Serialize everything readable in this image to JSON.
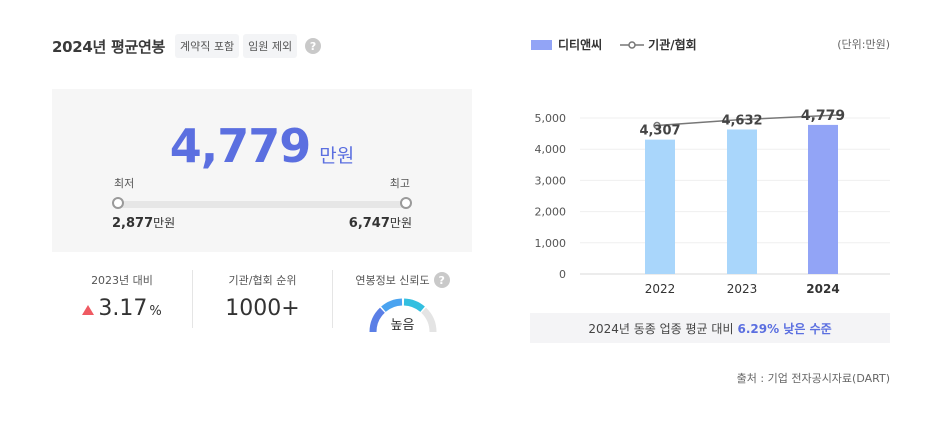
{
  "title": "2024년 평균연봉",
  "chips": [
    "계약직 포함",
    "임원 제외"
  ],
  "help_icon": "?",
  "salary": {
    "value": "4,779",
    "unit": "만원"
  },
  "range": {
    "min_label": "최저",
    "max_label": "최고",
    "min_value": "2,877",
    "max_value": "6,747",
    "unit": "만원"
  },
  "stats": {
    "yoy_label": "2023년 대비",
    "yoy_value": "3.17",
    "yoy_unit": "%",
    "rank_label": "기관/협회 순위",
    "rank_value": "1000+",
    "reliability_label": "연봉정보 신뢰도",
    "reliability_value": "높음"
  },
  "legend": {
    "company": "디티앤씨",
    "industry": "기관/협회"
  },
  "unit_note": "(단위:만원)",
  "chart_data": {
    "type": "bar",
    "categories": [
      "2022",
      "2023",
      "2024"
    ],
    "series": [
      {
        "name": "디티앤씨",
        "values": [
          4307,
          4632,
          4779
        ],
        "colors": [
          "#a9d6fb",
          "#a9d6fb",
          "#92a4f6"
        ]
      },
      {
        "name": "기관/협회",
        "type": "line",
        "values": [
          4760,
          4950,
          5100
        ],
        "color": "#777777"
      }
    ],
    "value_labels": [
      "4,307",
      "4,632",
      "4,779"
    ],
    "y_ticks": [
      "0",
      "1,000",
      "2,000",
      "3,000",
      "4,000",
      "5,000"
    ],
    "ylim": [
      0,
      5000
    ],
    "grid": true
  },
  "compare": {
    "prefix": "2024년 동종 업종 평균 대비",
    "highlight": "6.29% 낮은 수준"
  },
  "source": "출처 : 기업 전자공시자료(DART)",
  "colors": {
    "accent": "#5b6fe0",
    "bar_light": "#a9d6fb",
    "bar_current": "#92a4f6",
    "up": "#ef5a62"
  }
}
